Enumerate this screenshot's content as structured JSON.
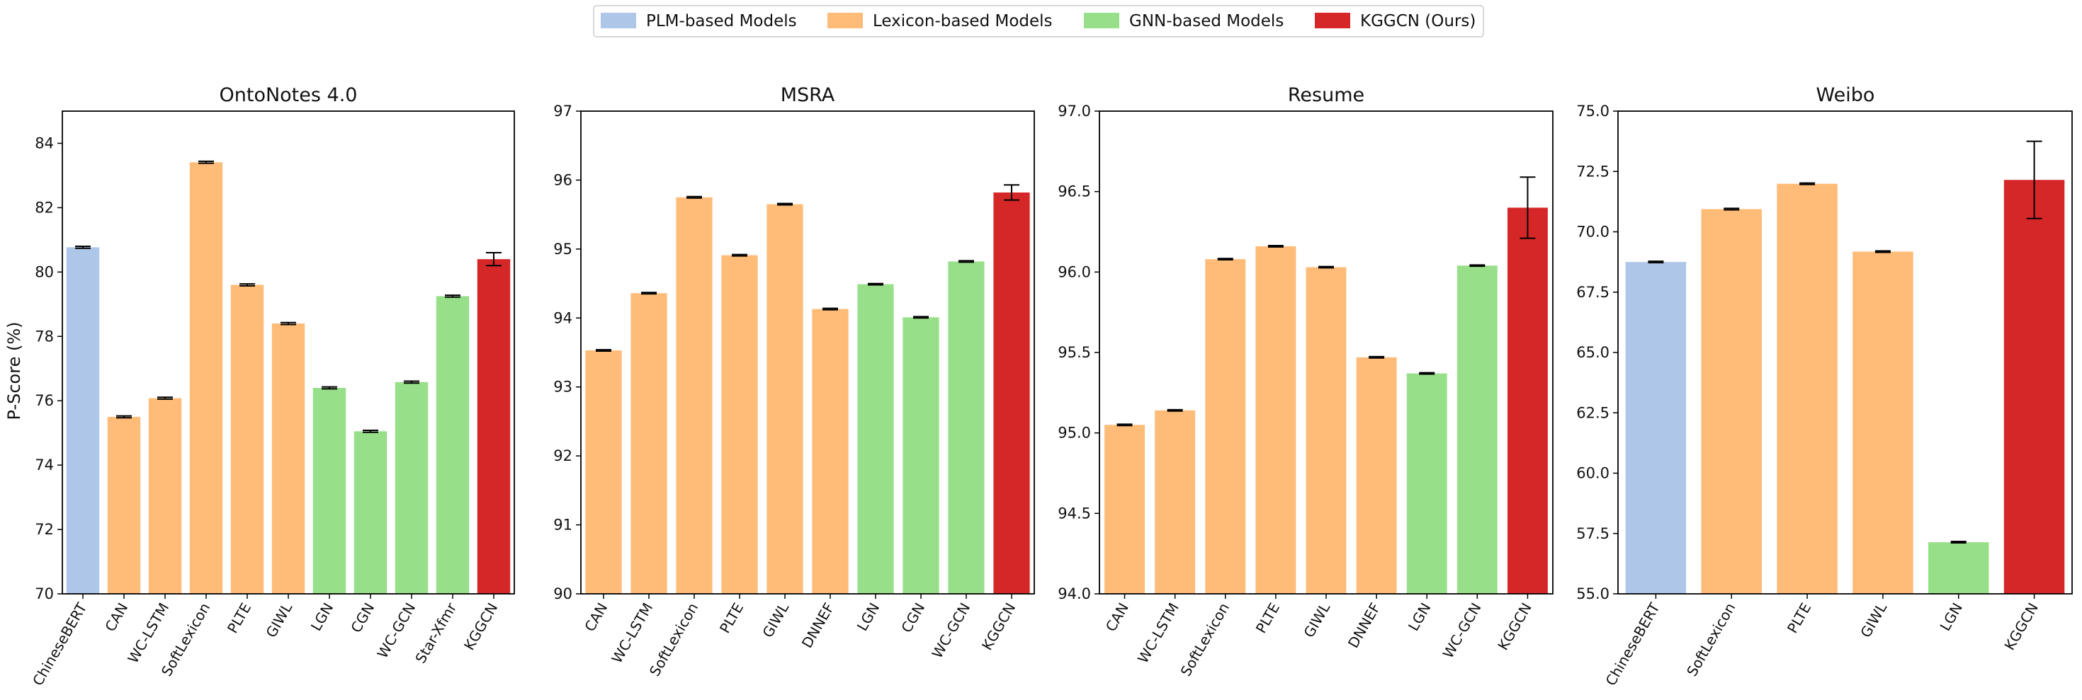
{
  "legend": {
    "items": [
      {
        "label": "PLM-based Models",
        "group": "plm"
      },
      {
        "label": "Lexicon-based Models",
        "group": "lex"
      },
      {
        "label": "GNN-based Models",
        "group": "gnn"
      },
      {
        "label": "KGGCN (Ours)",
        "group": "ours"
      }
    ]
  },
  "colors": {
    "plm": "#aec7e8",
    "lex": "#ffbb78",
    "gnn": "#98df8a",
    "ours": "#d62728",
    "errorbar": "#000000",
    "axis": "#000000"
  },
  "chart_data": [
    {
      "type": "bar",
      "title": "OntoNotes 4.0",
      "ylabel": "P-Score (%)",
      "ylim": [
        70,
        85
      ],
      "yticks": [
        "70",
        "72",
        "74",
        "76",
        "78",
        "80",
        "82",
        "84"
      ],
      "yticks_values": [
        70,
        72,
        74,
        76,
        78,
        80,
        82,
        84
      ],
      "categories": [
        "ChineseBERT",
        "CAN",
        "WC-LSTM",
        "SoftLexicon",
        "PLTE",
        "GIWL",
        "LGN",
        "CGN",
        "WC-GCN",
        "Star-Xfmr",
        "KGGCN"
      ],
      "values": [
        80.77,
        75.5,
        76.08,
        83.41,
        79.6,
        78.4,
        76.4,
        75.05,
        76.58,
        79.25,
        80.4
      ],
      "errors": [
        0.03,
        0.03,
        0.03,
        0.03,
        0.03,
        0.03,
        0.03,
        0.03,
        0.03,
        0.03,
        0.2
      ],
      "groups": [
        "plm",
        "lex",
        "lex",
        "lex",
        "lex",
        "lex",
        "gnn",
        "gnn",
        "gnn",
        "gnn",
        "ours"
      ]
    },
    {
      "type": "bar",
      "title": "MSRA",
      "ylabel": "",
      "ylim": [
        90,
        97
      ],
      "yticks": [
        "90",
        "91",
        "92",
        "93",
        "94",
        "95",
        "96",
        "97"
      ],
      "yticks_values": [
        90,
        91,
        92,
        93,
        94,
        95,
        96,
        97
      ],
      "categories": [
        "CAN",
        "WC-LSTM",
        "SoftLexicon",
        "PLTE",
        "GIWL",
        "DNNEF",
        "LGN",
        "CGN",
        "WC-GCN",
        "KGGCN"
      ],
      "values": [
        93.53,
        94.36,
        95.75,
        94.91,
        95.65,
        94.13,
        94.49,
        94.01,
        94.82,
        95.82
      ],
      "errors": [
        0.01,
        0.01,
        0.01,
        0.01,
        0.01,
        0.01,
        0.01,
        0.01,
        0.01,
        0.11
      ],
      "groups": [
        "lex",
        "lex",
        "lex",
        "lex",
        "lex",
        "lex",
        "gnn",
        "gnn",
        "gnn",
        "ours"
      ]
    },
    {
      "type": "bar",
      "title": "Resume",
      "ylabel": "",
      "ylim": [
        94,
        97
      ],
      "yticks": [
        "94.0",
        "94.5",
        "95.0",
        "95.5",
        "96.0",
        "96.5",
        "97.0"
      ],
      "yticks_values": [
        94.0,
        94.5,
        95.0,
        95.5,
        96.0,
        96.5,
        97.0
      ],
      "categories": [
        "CAN",
        "WC-LSTM",
        "SoftLexicon",
        "PLTE",
        "GIWL",
        "DNNEF",
        "LGN",
        "WC-GCN",
        "KGGCN"
      ],
      "values": [
        95.05,
        95.14,
        96.08,
        96.16,
        96.03,
        95.47,
        95.37,
        96.04,
        96.4
      ],
      "errors": [
        0.004,
        0.004,
        0.004,
        0.004,
        0.004,
        0.004,
        0.004,
        0.004,
        0.19
      ],
      "groups": [
        "lex",
        "lex",
        "lex",
        "lex",
        "lex",
        "lex",
        "gnn",
        "gnn",
        "ours"
      ]
    },
    {
      "type": "bar",
      "title": "Weibo",
      "ylabel": "",
      "ylim": [
        55,
        75
      ],
      "yticks": [
        "55.0",
        "57.5",
        "60.0",
        "62.5",
        "65.0",
        "67.5",
        "70.0",
        "72.5",
        "75.0"
      ],
      "yticks_values": [
        55,
        57.5,
        60,
        62.5,
        65,
        67.5,
        70,
        72.5,
        75
      ],
      "categories": [
        "ChineseBERT",
        "SoftLexicon",
        "PLTE",
        "GIWL",
        "LGN",
        "KGGCN"
      ],
      "values": [
        68.75,
        70.94,
        71.99,
        69.18,
        57.14,
        72.15
      ],
      "errors": [
        0.03,
        0.03,
        0.03,
        0.03,
        0.03,
        1.6
      ],
      "groups": [
        "plm",
        "lex",
        "lex",
        "lex",
        "gnn",
        "ours"
      ]
    }
  ]
}
